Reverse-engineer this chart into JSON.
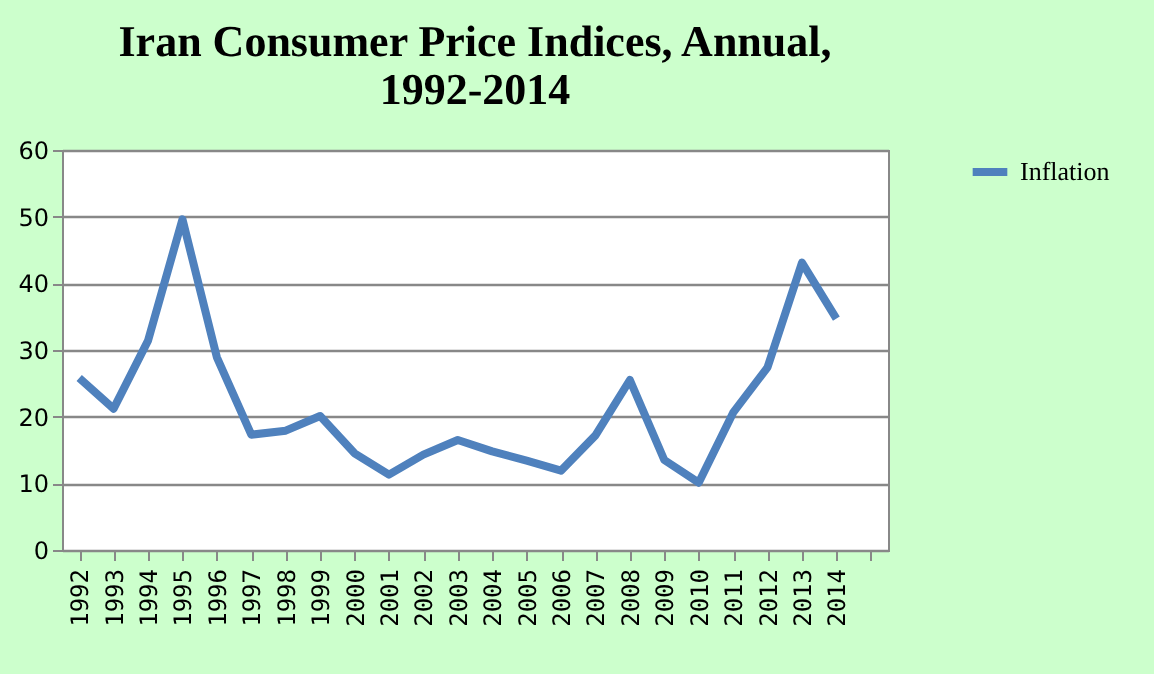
{
  "chart_data": {
    "type": "line",
    "title": "Iran Consumer Price Indices, Annual, 1992-2014",
    "categories": [
      "1992",
      "1993",
      "1994",
      "1995",
      "1996",
      "1997",
      "1998",
      "1999",
      "2000",
      "2001",
      "2002",
      "2003",
      "2004",
      "2005",
      "2006",
      "2007",
      "2008",
      "2009",
      "2010",
      "2011",
      "2012",
      "2013",
      "2014",
      null
    ],
    "series": [
      {
        "name": "Inflation",
        "color": "#4f81bd",
        "values": [
          25.8,
          21.2,
          31.4,
          49.6,
          28.9,
          17.3,
          17.9,
          20.1,
          14.5,
          11.3,
          14.3,
          16.5,
          14.8,
          13.4,
          11.9,
          17.2,
          25.5,
          13.5,
          10.1,
          20.6,
          27.4,
          43.1,
          34.7,
          null
        ]
      }
    ],
    "ylim": [
      0,
      60
    ],
    "yticks": [
      0,
      10,
      20,
      30,
      40,
      50,
      60
    ],
    "grid": "y",
    "legend": "right",
    "marker": "none",
    "line_style": "solid"
  }
}
